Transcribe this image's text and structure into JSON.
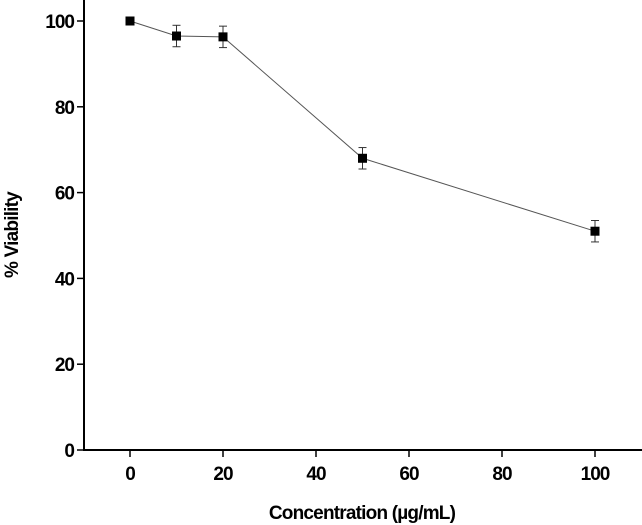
{
  "chart_data": {
    "type": "line",
    "title": "",
    "xlabel": "Concentration (µg/mL)",
    "ylabel": "% Viability",
    "xlim": [
      -10,
      110
    ],
    "ylim": [
      0,
      105
    ],
    "xticks": [
      "0",
      "20",
      "40",
      "60",
      "80",
      "100"
    ],
    "yticks": [
      "0",
      "20",
      "40",
      "60",
      "80",
      "100"
    ],
    "grid": false,
    "series": [
      {
        "x": [
          0,
          10,
          20,
          50,
          100
        ],
        "y": [
          100,
          96.5,
          96.3,
          68,
          51
        ],
        "error": [
          0,
          2.5,
          2.5,
          2.5,
          2.5
        ],
        "marker": "square",
        "color": "#000000",
        "line_color": "#555555"
      }
    ]
  }
}
